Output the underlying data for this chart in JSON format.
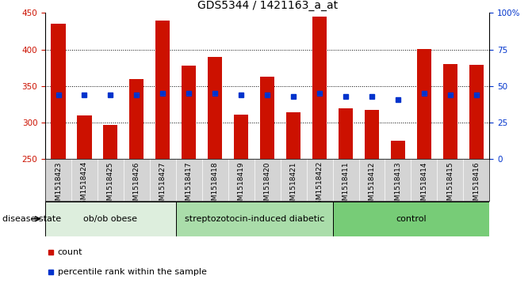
{
  "title": "GDS5344 / 1421163_a_at",
  "samples": [
    "GSM1518423",
    "GSM1518424",
    "GSM1518425",
    "GSM1518426",
    "GSM1518427",
    "GSM1518417",
    "GSM1518418",
    "GSM1518419",
    "GSM1518420",
    "GSM1518421",
    "GSM1518422",
    "GSM1518411",
    "GSM1518412",
    "GSM1518413",
    "GSM1518414",
    "GSM1518415",
    "GSM1518416"
  ],
  "counts": [
    435,
    310,
    297,
    360,
    440,
    378,
    390,
    311,
    363,
    314,
    445,
    320,
    318,
    275,
    401,
    380,
    379
  ],
  "percentile_ranks": [
    44,
    44,
    44,
    44,
    45,
    45,
    45,
    44,
    44,
    43,
    45,
    43,
    43,
    41,
    45,
    44,
    44
  ],
  "groups": [
    {
      "label": "ob/ob obese",
      "start": 0,
      "end": 5,
      "color": "#cceecc"
    },
    {
      "label": "streptozotocin-induced diabetic",
      "start": 5,
      "end": 11,
      "color": "#99dd99"
    },
    {
      "label": "control",
      "start": 11,
      "end": 17,
      "color": "#66cc66"
    }
  ],
  "bar_color": "#cc1100",
  "marker_color": "#0033cc",
  "ymin": 250,
  "ymax": 450,
  "yticks_left": [
    250,
    300,
    350,
    400,
    450
  ],
  "yticks_right": [
    0,
    25,
    50,
    75,
    100
  ],
  "bar_width": 0.55,
  "plot_bg_color": "#ffffff",
  "tick_bg_color": "#d4d4d4",
  "grid_color": "#000000",
  "title_fontsize": 10,
  "tick_fontsize": 7.5,
  "label_fontsize": 8
}
